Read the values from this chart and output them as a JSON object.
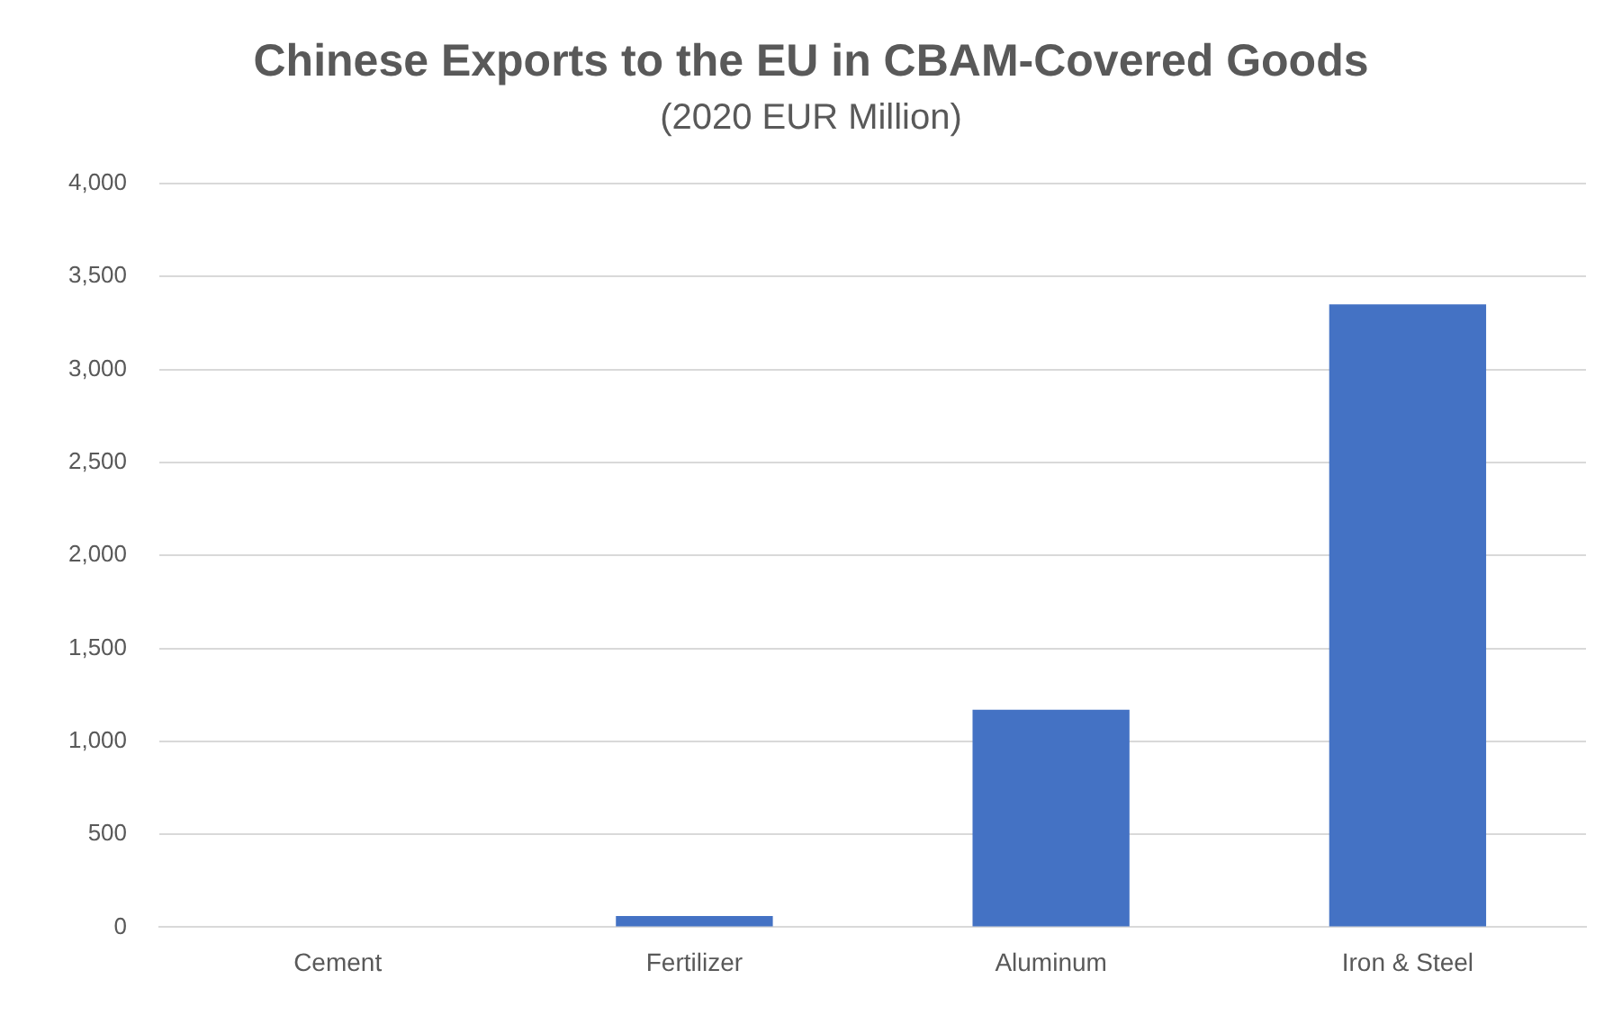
{
  "chart_data": {
    "type": "bar",
    "title": "Chinese Exports to the EU in CBAM-Covered Goods",
    "subtitle": "(2020 EUR Million)",
    "categories": [
      "Cement",
      "Fertilizer",
      "Aluminum",
      "Iron & Steel"
    ],
    "values": [
      0,
      60,
      1170,
      3350
    ],
    "color": "#4472c4",
    "ylim": [
      0,
      4000
    ],
    "yticks": [
      {
        "value": 0,
        "label": "0"
      },
      {
        "value": 500,
        "label": "500"
      },
      {
        "value": 1000,
        "label": "1,000"
      },
      {
        "value": 1500,
        "label": "1,500"
      },
      {
        "value": 2000,
        "label": "2,000"
      },
      {
        "value": 2500,
        "label": "2,500"
      },
      {
        "value": 3000,
        "label": "3,000"
      },
      {
        "value": 3500,
        "label": "3,500"
      },
      {
        "value": 4000,
        "label": "4,000"
      }
    ],
    "grid": "y",
    "legend": false
  }
}
